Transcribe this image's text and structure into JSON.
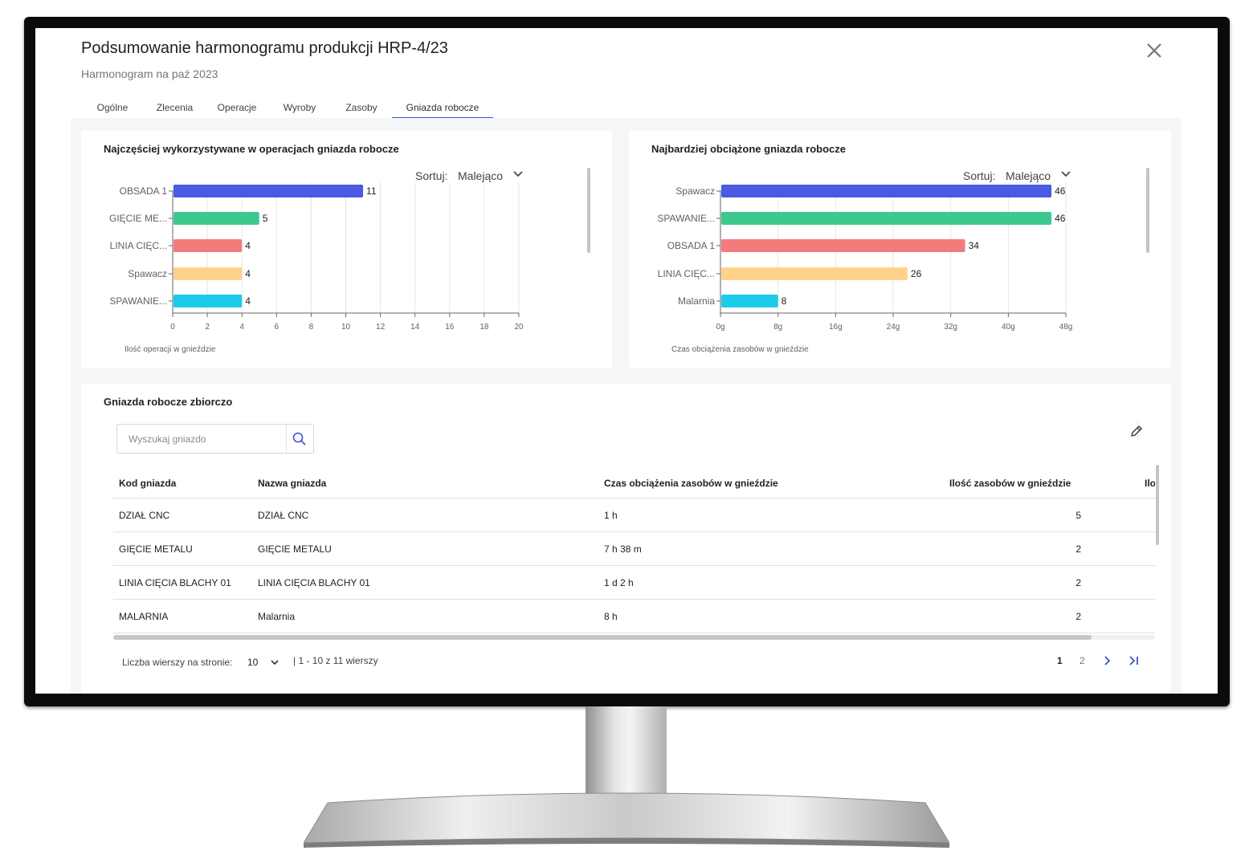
{
  "header": {
    "title": "Podsumowanie harmonogramu produkcji HRP-4/23",
    "subtitle": "Harmonogram na paź 2023"
  },
  "tabs": [
    {
      "label": "Ogólne",
      "active": false
    },
    {
      "label": "Zlecenia",
      "active": false
    },
    {
      "label": "Operacje",
      "active": false
    },
    {
      "label": "Wyroby",
      "active": false
    },
    {
      "label": "Zasoby",
      "active": false
    },
    {
      "label": "Gniazda robocze",
      "active": true
    }
  ],
  "chart_left": {
    "card_title": "Najczęściej wykorzystywane w operacjach gniazda robocze",
    "sort_label": "Sortuj:",
    "sort_value": "Malejąco"
  },
  "chart_right": {
    "card_title": "Najbardziej obciążone gniazda robocze",
    "sort_label": "Sortuj:",
    "sort_value": "Malejąco"
  },
  "chart_data": [
    {
      "type": "bar",
      "orientation": "horizontal",
      "categories": [
        "OBSADA 1",
        "GIĘCIE ME...",
        "LINIA CIĘC...",
        "Spawacz",
        "SPAWANIE..."
      ],
      "values": [
        11,
        5,
        4,
        4,
        4
      ],
      "colors": [
        "#4a5ae3",
        "#3cc98f",
        "#f47b7c",
        "#ffd28c",
        "#1ccbea"
      ],
      "xlabel": "Ilość operacji w gnieździe",
      "xlim": [
        0,
        20
      ],
      "xticks": [
        "0",
        "2",
        "4",
        "6",
        "8",
        "10",
        "12",
        "14",
        "16",
        "18",
        "20"
      ],
      "grid": true
    },
    {
      "type": "bar",
      "orientation": "horizontal",
      "categories": [
        "Spawacz",
        "SPAWANIE...",
        "OBSADA 1",
        "LINIA CIĘC...",
        "Malarnia"
      ],
      "values": [
        46,
        46,
        34,
        26,
        8
      ],
      "colors": [
        "#4a5ae3",
        "#3cc98f",
        "#f47b7c",
        "#ffd28c",
        "#1ccbea"
      ],
      "xlabel": "Czas obciążenia zasobów w gnieździe",
      "xlim": [
        0,
        48
      ],
      "xticks": [
        "0g",
        "8g",
        "16g",
        "24g",
        "32g",
        "40g",
        "48g"
      ],
      "grid": true
    }
  ],
  "summary": {
    "card_title": "Gniazda robocze zbiorczo",
    "search_placeholder": "Wyszukaj gniazdo",
    "columns": [
      "Kod gniazda",
      "Nazwa gniazda",
      "Czas obciążenia zasobów w gnieździe",
      "Ilość zasobów w gnieździe",
      "Ilo"
    ],
    "rows": [
      {
        "code": "DZIAŁ CNC",
        "name": "DZIAŁ CNC",
        "time": "1 h",
        "count": "5"
      },
      {
        "code": "GIĘCIE METALU",
        "name": "GIĘCIE METALU",
        "time": "7 h 38 m",
        "count": "2"
      },
      {
        "code": "LINIA CIĘCIA BLACHY 01",
        "name": "LINIA CIĘCIA BLACHY 01",
        "time": "1 d 2 h",
        "count": "2"
      },
      {
        "code": "MALARNIA",
        "name": "Malarnia",
        "time": "8 h",
        "count": "2"
      }
    ]
  },
  "pagination": {
    "rows_label": "Liczba wierszy na stronie:",
    "rows_value": "10",
    "range_text": "| 1 - 10 z 11 wierszy",
    "pages": [
      "1",
      "2"
    ],
    "current_page": "1"
  },
  "colors": {
    "accent": "#3f51d4",
    "background": "#f5f6f8"
  },
  "icons": {
    "close": "close-icon",
    "sort": "chevron-down-icon",
    "search": "search-icon",
    "edit": "pencil-icon",
    "next": "chevron-right-icon",
    "last": "last-page-icon"
  }
}
